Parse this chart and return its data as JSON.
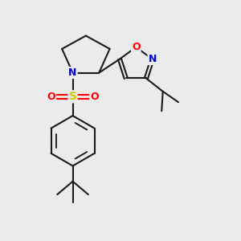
{
  "bg_color": "#ebebeb",
  "bond_color": "#1a1a1a",
  "bond_width": 1.5,
  "atom_colors": {
    "N": "#0000cc",
    "O": "#ff0000",
    "S": "#cccc00",
    "C": "#1a1a1a"
  },
  "font_size": 9,
  "figsize": [
    3.0,
    3.0
  ],
  "dpi": 100
}
